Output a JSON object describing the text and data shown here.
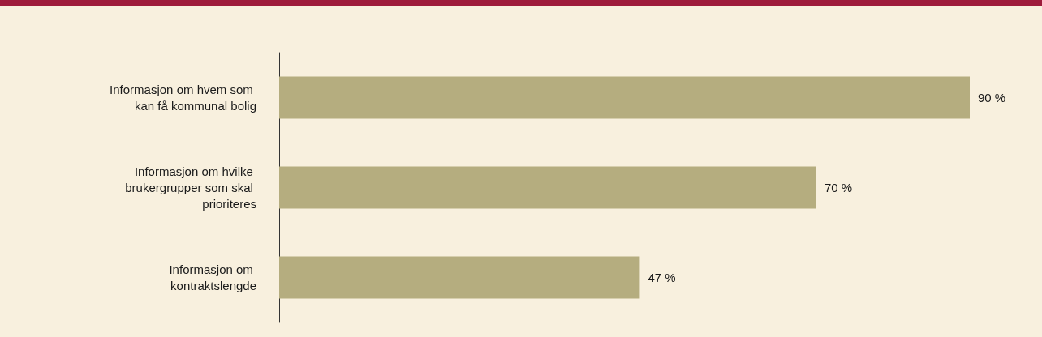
{
  "chart_data": {
    "type": "bar",
    "orientation": "horizontal",
    "categories": [
      "Informasjon om hvem som kan få kommunal bolig",
      "Informasjon om hvilke brukergrupper som skal prioriteres",
      "Informasjon om kontraktslengde"
    ],
    "values": [
      90,
      70,
      47
    ],
    "value_labels": [
      "90 %",
      "70 %",
      "47 %"
    ],
    "color": "#b5ad7f"
  }
}
